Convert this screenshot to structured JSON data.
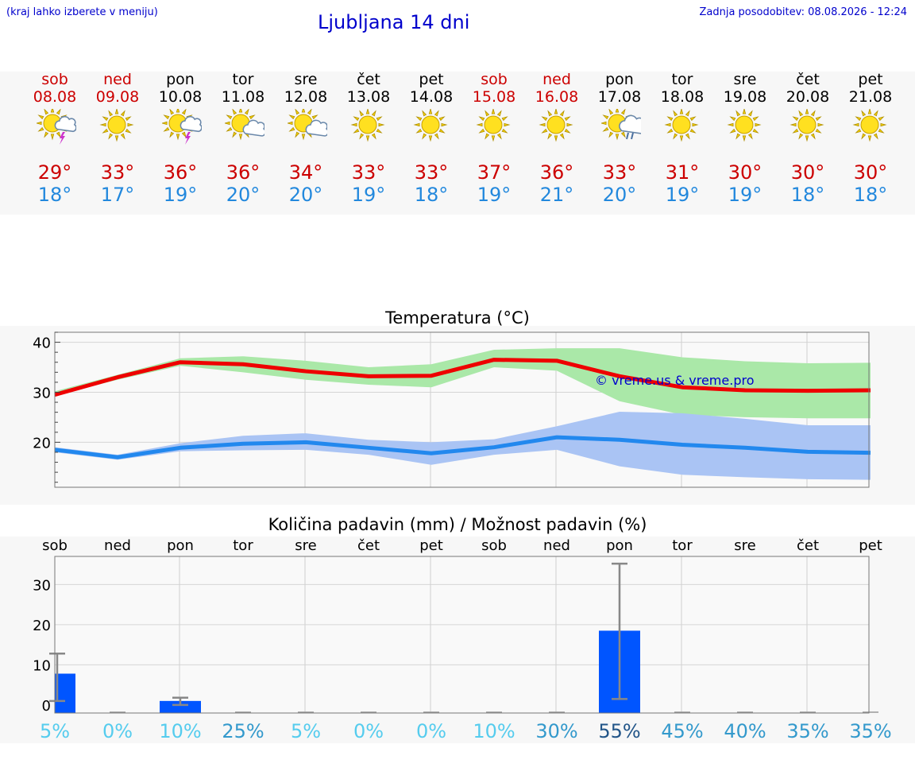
{
  "header": {
    "hint": "(kraj lahko izberete v meniju)",
    "title": "Ljubljana 14 dni",
    "updated": "Zadnja posodobitev: 08.08.2026 - 12:24"
  },
  "days": [
    {
      "name": "sob",
      "date": "08.08",
      "weekend": true,
      "icon": "sun-cloud-lightning-icon",
      "max": "29°",
      "min": "18°"
    },
    {
      "name": "ned",
      "date": "09.08",
      "weekend": true,
      "icon": "sun-icon",
      "max": "33°",
      "min": "17°"
    },
    {
      "name": "pon",
      "date": "10.08",
      "weekend": false,
      "icon": "sun-cloud-lightning-icon",
      "max": "36°",
      "min": "19°"
    },
    {
      "name": "tor",
      "date": "11.08",
      "weekend": false,
      "icon": "sun-cloud-icon",
      "max": "36°",
      "min": "20°"
    },
    {
      "name": "sre",
      "date": "12.08",
      "weekend": false,
      "icon": "sun-cloud-icon",
      "max": "34°",
      "min": "20°"
    },
    {
      "name": "čet",
      "date": "13.08",
      "weekend": false,
      "icon": "sun-icon",
      "max": "33°",
      "min": "19°"
    },
    {
      "name": "pet",
      "date": "14.08",
      "weekend": false,
      "icon": "sun-icon",
      "max": "33°",
      "min": "18°"
    },
    {
      "name": "sob",
      "date": "15.08",
      "weekend": true,
      "icon": "sun-icon",
      "max": "37°",
      "min": "19°"
    },
    {
      "name": "ned",
      "date": "16.08",
      "weekend": true,
      "icon": "sun-icon",
      "max": "36°",
      "min": "21°"
    },
    {
      "name": "pon",
      "date": "17.08",
      "weekend": false,
      "icon": "sun-cloud-rain-icon",
      "max": "33°",
      "min": "20°"
    },
    {
      "name": "tor",
      "date": "18.08",
      "weekend": false,
      "icon": "sun-icon",
      "max": "31°",
      "min": "19°"
    },
    {
      "name": "sre",
      "date": "19.08",
      "weekend": false,
      "icon": "sun-icon",
      "max": "30°",
      "min": "19°"
    },
    {
      "name": "čet",
      "date": "20.08",
      "weekend": false,
      "icon": "sun-icon",
      "max": "30°",
      "min": "18°"
    },
    {
      "name": "pet",
      "date": "21.08",
      "weekend": false,
      "icon": "sun-icon",
      "max": "30°",
      "min": "18°"
    }
  ],
  "colors": {
    "max_line": "#ee0000",
    "max_band": "#aae8a8",
    "min_line": "#2288ee",
    "min_band": "#aac4f4",
    "precip_bar": "#0055ff",
    "error_bar": "#888888",
    "weekend": "#cc0000",
    "prob_low": "#55ccee",
    "prob_mid": "#3399cc",
    "prob_high": "#225588"
  },
  "chart_data": [
    {
      "type": "line",
      "title": "Temperatura (°C)",
      "watermark": "© vreme.us & vreme.pro",
      "yticks": [
        20,
        30,
        40
      ],
      "ylim": [
        11,
        42
      ],
      "x": [
        0,
        1,
        2,
        3,
        4,
        5,
        6,
        7,
        8,
        9,
        10,
        11,
        12,
        13
      ],
      "series": [
        {
          "values": [
            29.5,
            33,
            36,
            35.6,
            34.2,
            33.2,
            33.3,
            36.5,
            36.3,
            33.2,
            31,
            30.4,
            30.3,
            30.4
          ],
          "lower": [
            29.3,
            32.5,
            35.3,
            34,
            32.5,
            31.5,
            31,
            35,
            34.3,
            28.2,
            25.5,
            25,
            24.8,
            24.8
          ],
          "upper": [
            30.2,
            33.5,
            36.8,
            37.2,
            36.3,
            35,
            35.6,
            38.5,
            38.8,
            38.8,
            37,
            36.2,
            35.8,
            35.9
          ]
        },
        {
          "values": [
            18.5,
            17,
            18.9,
            19.7,
            20,
            18.9,
            17.8,
            19,
            21,
            20.5,
            19.5,
            18.9,
            18.1,
            17.9
          ],
          "lower": [
            18,
            16.5,
            18.2,
            18.4,
            18.5,
            17.5,
            15.5,
            17.5,
            18.5,
            15.2,
            13.5,
            13,
            12.6,
            12.5
          ],
          "upper": [
            19,
            17.5,
            19.8,
            21.3,
            21.8,
            20.5,
            20,
            20.6,
            23.2,
            26.1,
            25.8,
            24.7,
            23.4,
            23.4
          ]
        }
      ]
    },
    {
      "type": "bar",
      "title": "Količina padavin (mm) / Možnost padavin (%)",
      "categories": [
        "sob",
        "ned",
        "pon",
        "tor",
        "sre",
        "čet",
        "pet",
        "sob",
        "ned",
        "pon",
        "tor",
        "sre",
        "čet",
        "pet"
      ],
      "yticks": [
        0,
        10,
        20,
        30
      ],
      "ylim": [
        -2,
        37
      ],
      "values": [
        7.8,
        0,
        1,
        0,
        0,
        0,
        0,
        0,
        0,
        18.5,
        0,
        0,
        0,
        0
      ],
      "error_low": [
        1,
        0,
        0,
        0,
        0,
        0,
        0,
        0,
        0,
        1.5,
        0,
        0,
        0,
        0
      ],
      "error_high": [
        12.8,
        0,
        1.8,
        0,
        0,
        0,
        0,
        0,
        0,
        35.2,
        0,
        0,
        0,
        0
      ],
      "probabilities": [
        "5%",
        "0%",
        "10%",
        "25%",
        "5%",
        "0%",
        "0%",
        "10%",
        "30%",
        "55%",
        "45%",
        "40%",
        "35%",
        "35%"
      ]
    }
  ]
}
